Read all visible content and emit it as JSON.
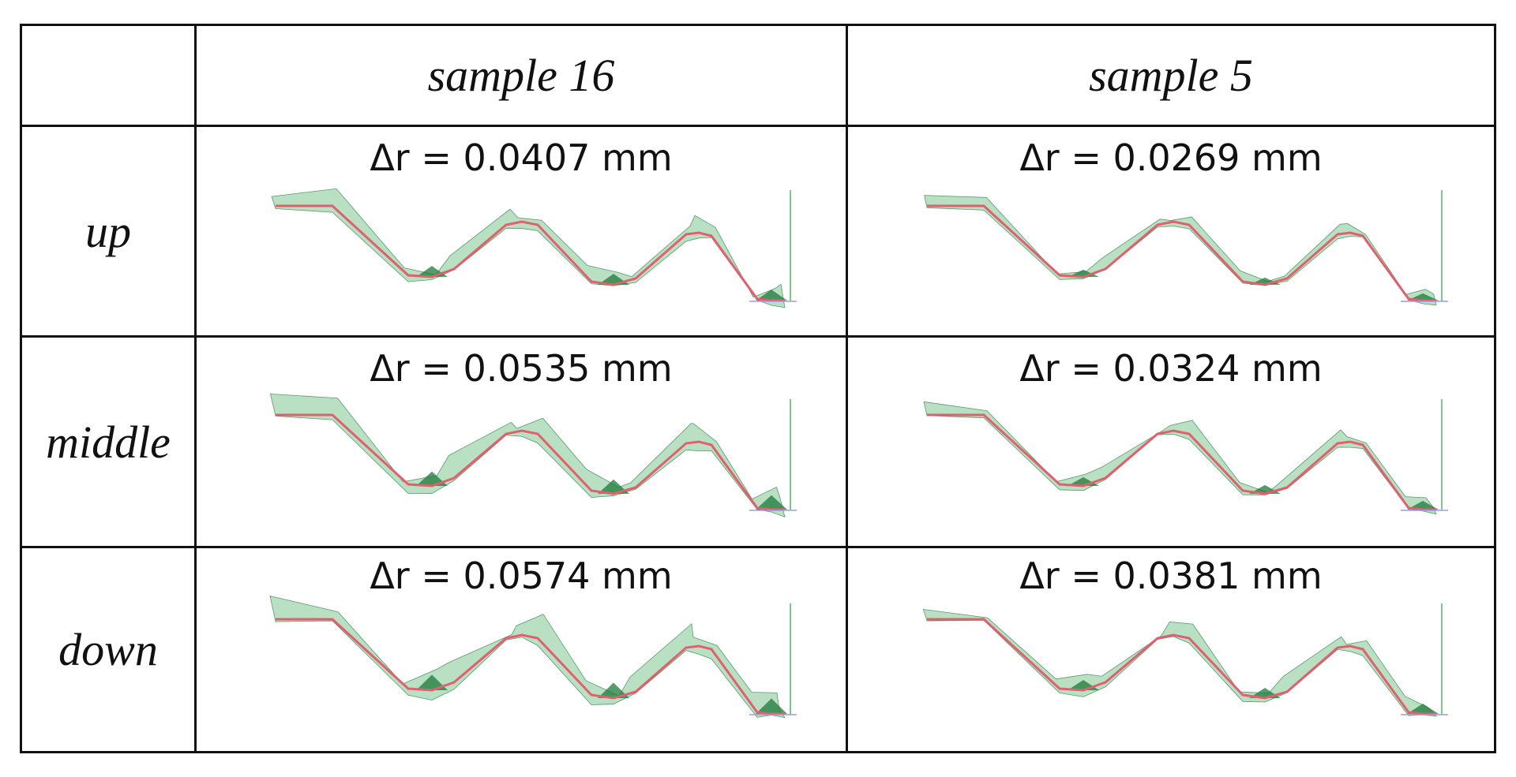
{
  "table": {
    "columns": [
      "sample 16",
      "sample 5"
    ],
    "rows": [
      {
        "label": "up",
        "cells": [
          "Δr = 0.0407 mm",
          "Δr = 0.0269 mm"
        ],
        "deviation_mm": [
          0.0407,
          0.0269
        ]
      },
      {
        "label": "middle",
        "cells": [
          "Δr = 0.0535 mm",
          "Δr = 0.0324 mm"
        ],
        "deviation_mm": [
          0.0535,
          0.0324
        ]
      },
      {
        "label": "down",
        "cells": [
          "Δr = 0.0574 mm",
          "Δr = 0.0381 mm"
        ],
        "deviation_mm": [
          0.0574,
          0.0381
        ]
      }
    ]
  },
  "colors": {
    "nominal_profile": "#e06070",
    "deviation_fill": "#7fc790",
    "deviation_dark": "#1e7a38",
    "axis": "#9b9bdd",
    "grid_line": "#111111"
  }
}
